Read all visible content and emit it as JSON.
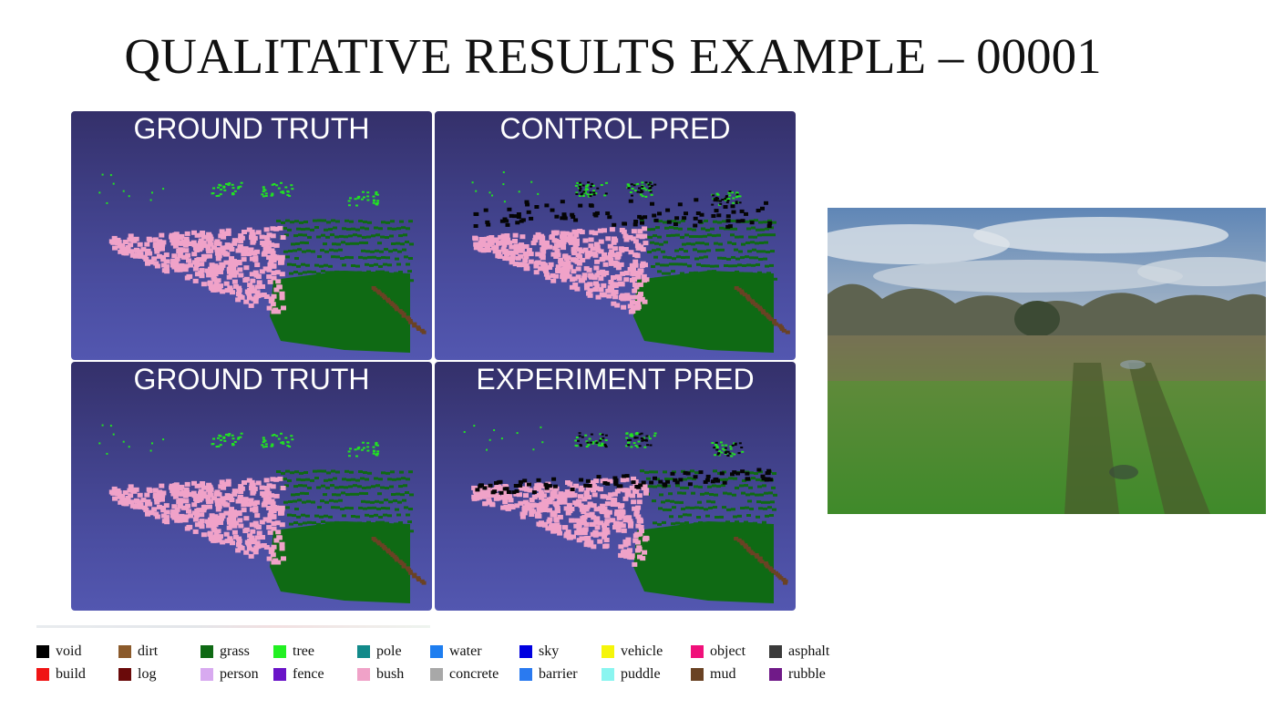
{
  "title": "QUALITATIVE RESULTS EXAMPLE – 00001",
  "panels": [
    {
      "label": "GROUND TRUTH"
    },
    {
      "label": "CONTROL PRED"
    },
    {
      "label": "GROUND TRUTH"
    },
    {
      "label": "EXPERIMENT PRED"
    }
  ],
  "colors": {
    "panel_bg_top": "#34306a",
    "panel_bg_bottom": "#5357b0",
    "grass": "#0f6a14",
    "bush": "#f0a2c8",
    "tree": "#22e222",
    "void": "#050505",
    "mud": "#6a4224"
  },
  "legend": [
    {
      "label": "void",
      "color": "#000000"
    },
    {
      "label": "dirt",
      "color": "#8b5a2b"
    },
    {
      "label": "grass",
      "color": "#0f6a14"
    },
    {
      "label": "tree",
      "color": "#22f022"
    },
    {
      "label": "pole",
      "color": "#128a8a"
    },
    {
      "label": "water",
      "color": "#1e7ef0"
    },
    {
      "label": "sky",
      "color": "#0000e0"
    },
    {
      "label": "vehicle",
      "color": "#f5f50a"
    },
    {
      "label": "object",
      "color": "#f0107a"
    },
    {
      "label": "asphalt",
      "color": "#3a3a3a"
    },
    {
      "label": "build",
      "color": "#f01414"
    },
    {
      "label": "log",
      "color": "#6a0a0a"
    },
    {
      "label": "person",
      "color": "#d8aaf0"
    },
    {
      "label": "fence",
      "color": "#6a14c8"
    },
    {
      "label": "bush",
      "color": "#f0a2c8"
    },
    {
      "label": "concrete",
      "color": "#a8a8a8"
    },
    {
      "label": "barrier",
      "color": "#2a7af0"
    },
    {
      "label": "puddle",
      "color": "#8af5f0"
    },
    {
      "label": "mud",
      "color": "#6a4224"
    },
    {
      "label": "rubble",
      "color": "#701a88"
    }
  ]
}
